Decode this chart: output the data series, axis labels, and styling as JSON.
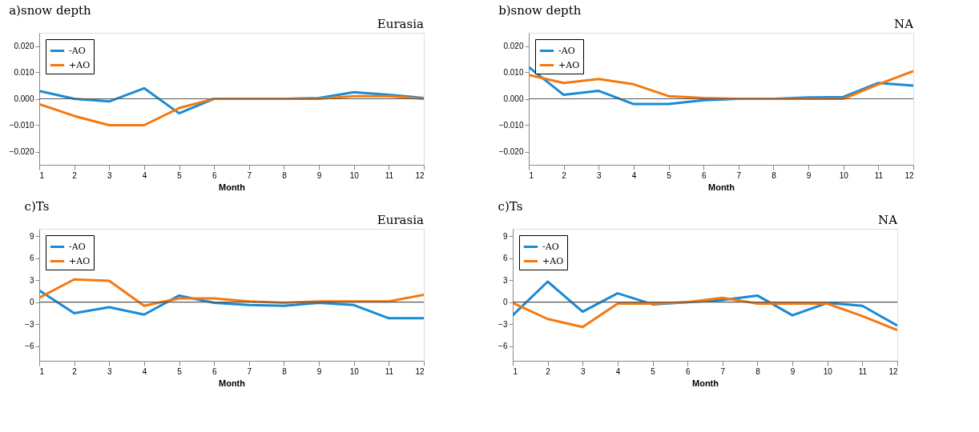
{
  "chart_data": [
    {
      "type": "line",
      "title": "a)snow depth",
      "subtitle": "Eurasia",
      "xlabel": "Month",
      "x": [
        1,
        2,
        3,
        4,
        5,
        6,
        7,
        8,
        9,
        10,
        11,
        12
      ],
      "xlim": [
        1,
        12
      ],
      "xticks": [
        1,
        2,
        3,
        4,
        5,
        6,
        7,
        8,
        9,
        10,
        11,
        12
      ],
      "ylim": [
        -0.025,
        0.025
      ],
      "yticks": [
        {
          "value": -0.02,
          "label": "−0.020"
        },
        {
          "value": -0.01,
          "label": "−0.010"
        },
        {
          "value": 0,
          "label": "0.000"
        },
        {
          "value": 0.01,
          "label": "0.010"
        },
        {
          "value": 0.02,
          "label": "0.020"
        }
      ],
      "series": [
        {
          "name": "-AO",
          "color": "#1a8ad4",
          "values": [
            0.003,
            0.0,
            -0.001,
            0.004,
            -0.0055,
            0,
            0,
            0,
            0.0003,
            0.0025,
            0.0015,
            0.0003
          ]
        },
        {
          "name": "+AO",
          "color": "#f5780f",
          "values": [
            -0.002,
            -0.0065,
            -0.01,
            -0.01,
            -0.0035,
            0,
            0,
            0,
            0,
            0.001,
            0.001,
            0.0
          ]
        }
      ],
      "ref_lines": [
        {
          "axis": "y",
          "value": 0,
          "color": "#555555"
        }
      ],
      "legend": "top left",
      "grid": false,
      "marker": "none",
      "line_style": "solid"
    },
    {
      "type": "line",
      "title": "b)snow depth",
      "subtitle": "NA",
      "xlabel": "Month",
      "x": [
        1,
        2,
        3,
        4,
        5,
        6,
        7,
        8,
        9,
        10,
        11,
        12
      ],
      "xlim": [
        1,
        12
      ],
      "xticks": [
        1,
        2,
        3,
        4,
        5,
        6,
        7,
        8,
        9,
        10,
        11,
        12
      ],
      "ylim": [
        -0.025,
        0.025
      ],
      "yticks": [
        {
          "value": -0.02,
          "label": "−0.020"
        },
        {
          "value": -0.01,
          "label": "−0.010"
        },
        {
          "value": 0,
          "label": "0.000"
        },
        {
          "value": 0.01,
          "label": "0.010"
        },
        {
          "value": 0.02,
          "label": "0.020"
        }
      ],
      "series": [
        {
          "name": "-AO",
          "color": "#1a8ad4",
          "values": [
            0.012,
            0.0015,
            0.003,
            -0.002,
            -0.002,
            -0.0005,
            0,
            0,
            0.0005,
            0.0007,
            0.006,
            0.005
          ]
        },
        {
          "name": "+AO",
          "color": "#f5780f",
          "values": [
            0.009,
            0.006,
            0.0075,
            0.0055,
            0.001,
            0.0003,
            0,
            0,
            0,
            0,
            0.0055,
            0.0105
          ]
        }
      ],
      "ref_lines": [
        {
          "axis": "y",
          "value": 0,
          "color": "#555555"
        }
      ],
      "legend": "top left",
      "grid": false,
      "marker": "none",
      "line_style": "solid"
    },
    {
      "type": "line",
      "title": "c)Ts",
      "subtitle": "Eurasia",
      "xlabel": "Month",
      "x": [
        1,
        2,
        3,
        4,
        5,
        6,
        7,
        8,
        9,
        10,
        11,
        12
      ],
      "xlim": [
        1,
        12
      ],
      "xticks": [
        1,
        2,
        3,
        4,
        5,
        6,
        7,
        8,
        9,
        10,
        11,
        12
      ],
      "ylim": [
        -8,
        10
      ],
      "yticks": [
        {
          "value": -6,
          "label": "−6"
        },
        {
          "value": -3,
          "label": "−3"
        },
        0,
        3,
        6,
        9
      ],
      "series": [
        {
          "name": "-AO",
          "color": "#1a8ad4",
          "values": [
            1.6,
            -1.5,
            -0.7,
            -1.7,
            0.9,
            -0.1,
            -0.4,
            -0.5,
            -0.1,
            -0.4,
            -2.2,
            -2.2
          ]
        },
        {
          "name": "+AO",
          "color": "#f5780f",
          "values": [
            0.6,
            3.1,
            2.9,
            -0.5,
            0.5,
            0.5,
            0.1,
            -0.1,
            0.1,
            0.1,
            0.1,
            1.0
          ]
        }
      ],
      "ref_lines": [
        {
          "axis": "y",
          "value": 0,
          "color": "#555555"
        }
      ],
      "legend": "top left",
      "grid": false,
      "marker": "none",
      "line_style": "solid"
    },
    {
      "type": "line",
      "title": "c)Ts",
      "subtitle": "NA",
      "xlabel": "Month",
      "x": [
        1,
        2,
        3,
        4,
        5,
        6,
        7,
        8,
        9,
        10,
        11,
        12
      ],
      "xlim": [
        1,
        12
      ],
      "xticks": [
        1,
        2,
        3,
        4,
        5,
        6,
        7,
        8,
        9,
        10,
        11,
        12
      ],
      "ylim": [
        -8,
        10
      ],
      "yticks": [
        {
          "value": -6,
          "label": "−6"
        },
        {
          "value": -3,
          "label": "−3"
        },
        0,
        3,
        6,
        9
      ],
      "series": [
        {
          "name": "-AO",
          "color": "#1a8ad4",
          "values": [
            -1.8,
            2.8,
            -1.3,
            1.2,
            -0.3,
            0,
            0.3,
            0.9,
            -1.8,
            -0.1,
            -0.5,
            -3.2
          ]
        },
        {
          "name": "+AO",
          "color": "#f5780f",
          "values": [
            -0.1,
            -2.3,
            -3.4,
            -0.2,
            -0.2,
            0,
            0.6,
            -0.2,
            -0.2,
            -0.2,
            -1.9,
            -3.8
          ]
        }
      ],
      "ref_lines": [
        {
          "axis": "y",
          "value": 0,
          "color": "#555555"
        }
      ],
      "legend": "top left",
      "grid": false,
      "marker": "none",
      "line_style": "solid"
    }
  ]
}
